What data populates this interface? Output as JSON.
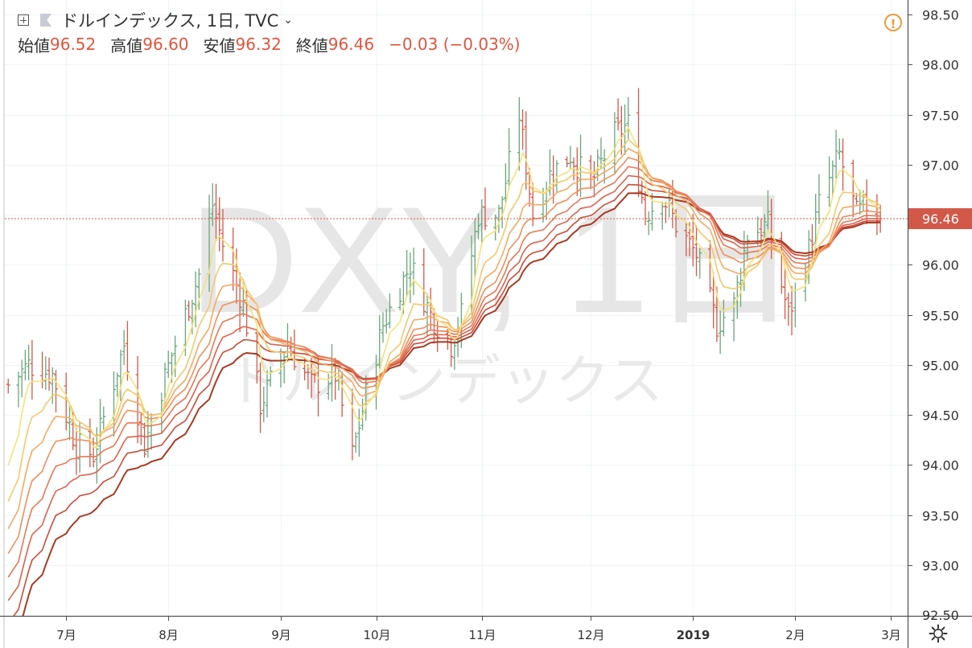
{
  "header": {
    "title": "ドルインデックス, 1日, TVC",
    "open_label": "始値",
    "open_value": "96.52",
    "high_label": "高値",
    "high_value": "96.60",
    "low_label": "安値",
    "low_value": "96.32",
    "close_label": "終値",
    "close_value": "96.46",
    "change": "−0.03 (−0.03%)"
  },
  "watermark": {
    "symbol": "DXY, 1日",
    "name": "ドルインデックス"
  },
  "icons": {
    "add": "plus-square-icon",
    "flag": "flag-icon",
    "dropdown": "chevron-down-icon",
    "warning": "warning-icon",
    "settings": "gear-icon"
  },
  "colors": {
    "up": "#6aa67c",
    "down": "#d2594a",
    "last_price_tag": "#d2594a",
    "ribbon_fast": "#f4e27a",
    "ribbon_slow": "#a83a22"
  },
  "chart_data": {
    "type": "ohlc",
    "symbol": "DXY",
    "interval": "1日",
    "ylim": [
      92.5,
      98.6
    ],
    "y_ticks": [
      "93.00",
      "93.50",
      "94.00",
      "94.50",
      "95.00",
      "95.50",
      "96.00",
      "96.50",
      "97.00",
      "97.50",
      "98.00",
      "98.50"
    ],
    "x_ticks": [
      {
        "label": "7月",
        "date": "2018-07-02"
      },
      {
        "label": "8月",
        "date": "2018-08-01"
      },
      {
        "label": "9月",
        "date": "2018-09-03"
      },
      {
        "label": "10月",
        "date": "2018-10-01"
      },
      {
        "label": "11月",
        "date": "2018-11-01"
      },
      {
        "label": "12月",
        "date": "2018-12-03"
      },
      {
        "label": "2019",
        "date": "2019-01-02"
      },
      {
        "label": "2月",
        "date": "2019-02-01"
      },
      {
        "label": "3月",
        "date": "2019-03-01"
      }
    ],
    "last_price": {
      "value": 96.46,
      "label": "96.46"
    },
    "ribbon_periods": [
      5,
      10,
      15,
      20,
      25,
      30,
      35,
      40
    ],
    "key_closes": [
      [
        "2018-06-15",
        94.8
      ],
      [
        "2018-06-21",
        95.0
      ],
      [
        "2018-06-28",
        94.9
      ],
      [
        "2018-07-05",
        94.2
      ],
      [
        "2018-07-10",
        94.1
      ],
      [
        "2018-07-19",
        95.2
      ],
      [
        "2018-07-25",
        94.2
      ],
      [
        "2018-08-02",
        95.1
      ],
      [
        "2018-08-10",
        95.9
      ],
      [
        "2018-08-14",
        96.6
      ],
      [
        "2018-08-17",
        96.2
      ],
      [
        "2018-08-23",
        95.6
      ],
      [
        "2018-08-28",
        94.6
      ],
      [
        "2018-09-05",
        95.2
      ],
      [
        "2018-09-12",
        94.8
      ],
      [
        "2018-09-19",
        94.9
      ],
      [
        "2018-09-24",
        94.1
      ],
      [
        "2018-09-28",
        94.7
      ],
      [
        "2018-10-03",
        95.4
      ],
      [
        "2018-10-11",
        96.0
      ],
      [
        "2018-10-17",
        95.5
      ],
      [
        "2018-10-23",
        95.2
      ],
      [
        "2018-10-26",
        95.5
      ],
      [
        "2018-10-31",
        96.5
      ],
      [
        "2018-11-06",
        96.5
      ],
      [
        "2018-11-12",
        97.5
      ],
      [
        "2018-11-16",
        96.5
      ],
      [
        "2018-11-21",
        96.9
      ],
      [
        "2018-11-27",
        97.1
      ],
      [
        "2018-12-03",
        96.8
      ],
      [
        "2018-12-10",
        97.3
      ],
      [
        "2018-12-14",
        97.4
      ],
      [
        "2018-12-19",
        96.5
      ],
      [
        "2018-12-24",
        96.7
      ],
      [
        "2018-12-28",
        96.4
      ],
      [
        "2019-01-03",
        96.1
      ],
      [
        "2019-01-09",
        95.4
      ],
      [
        "2019-01-14",
        95.6
      ],
      [
        "2019-01-18",
        96.3
      ],
      [
        "2019-01-24",
        96.4
      ],
      [
        "2019-01-30",
        95.5
      ],
      [
        "2019-02-04",
        96.0
      ],
      [
        "2019-02-08",
        96.6
      ],
      [
        "2019-02-14",
        97.1
      ],
      [
        "2019-02-19",
        96.5
      ],
      [
        "2019-02-22",
        96.6
      ],
      [
        "2019-02-26",
        96.46
      ]
    ]
  }
}
